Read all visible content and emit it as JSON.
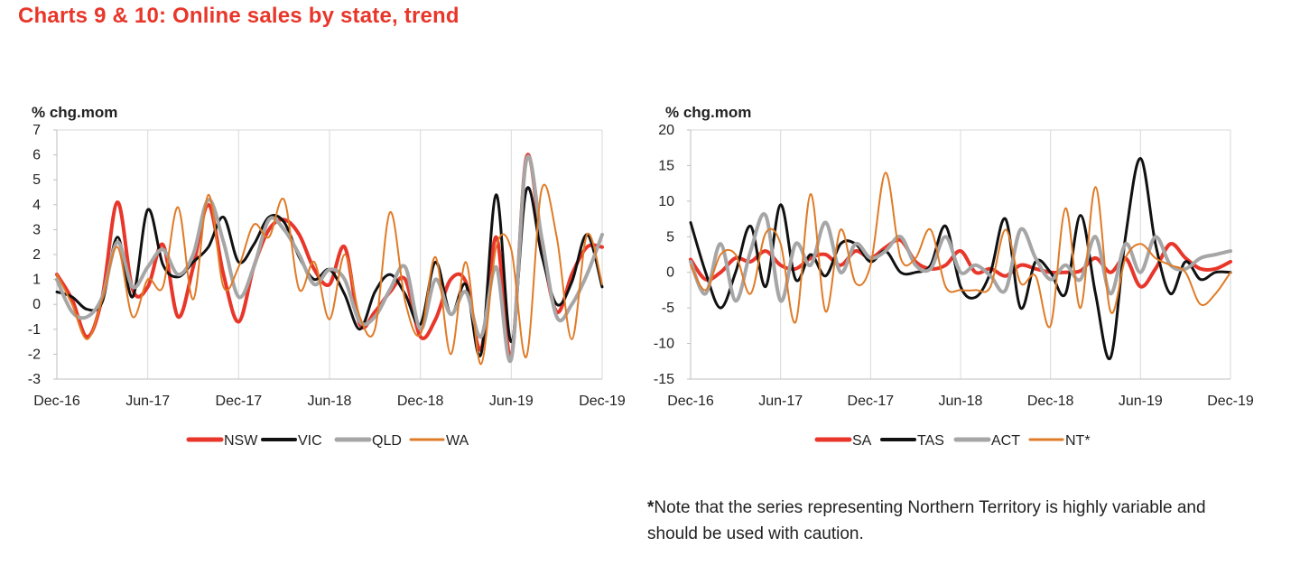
{
  "title": "Charts 9 & 10: Online sales by state, trend",
  "note": {
    "star": "*",
    "text": "Note that the series representing Northern Territory is highly variable and should be used with caution."
  },
  "colors": {
    "title": "#e8362a",
    "grid": "#d9d9d9",
    "axis": "#bfbfbf",
    "text": "#222222"
  },
  "chart_data": [
    {
      "type": "line",
      "ylabel": "% chg.mom",
      "ylim": [
        -3,
        7
      ],
      "yticks": [
        -3,
        -2,
        -1,
        0,
        1,
        2,
        3,
        4,
        5,
        6,
        7
      ],
      "xlim": [
        "2016-12",
        "2019-12"
      ],
      "xticks": [
        "Dec-16",
        "Jun-17",
        "Dec-17",
        "Jun-18",
        "Dec-18",
        "Jun-19",
        "Dec-19"
      ],
      "grid": true,
      "legend": "bottom",
      "x": [
        "2016-12",
        "2017-01",
        "2017-02",
        "2017-03",
        "2017-04",
        "2017-05",
        "2017-06",
        "2017-07",
        "2017-08",
        "2017-09",
        "2017-10",
        "2017-11",
        "2017-12",
        "2018-01",
        "2018-02",
        "2018-03",
        "2018-04",
        "2018-05",
        "2018-06",
        "2018-07",
        "2018-08",
        "2018-09",
        "2018-10",
        "2018-11",
        "2018-12",
        "2019-01",
        "2019-02",
        "2019-03",
        "2019-04",
        "2019-05",
        "2019-06",
        "2019-07",
        "2019-08",
        "2019-09",
        "2019-10",
        "2019-11",
        "2019-12"
      ],
      "series": [
        {
          "name": "NSW",
          "color": "#e8362a",
          "width": 4,
          "values": [
            1.2,
            0.2,
            -1.3,
            0.3,
            4.1,
            0.6,
            0.7,
            2.4,
            -0.5,
            1.5,
            4.0,
            1.2,
            -0.7,
            1.5,
            3.0,
            3.4,
            2.8,
            1.4,
            0.8,
            2.3,
            -0.8,
            -0.3,
            0.5,
            1.0,
            -1.3,
            -0.6,
            1.0,
            0.9,
            -1.8,
            2.7,
            -2.1,
            5.9,
            2.4,
            -0.3,
            1.2,
            2.3,
            2.3
          ]
        },
        {
          "name": "VIC",
          "color": "#111111",
          "width": 3,
          "values": [
            0.5,
            0.3,
            -0.2,
            0.1,
            2.7,
            0.3,
            3.8,
            1.6,
            1.1,
            1.7,
            2.3,
            3.5,
            1.7,
            2.4,
            3.5,
            3.3,
            1.9,
            1.0,
            1.4,
            0.4,
            -1.0,
            0.5,
            1.2,
            0.4,
            -0.8,
            1.7,
            -0.4,
            0.8,
            -2.0,
            4.4,
            -1.5,
            4.6,
            2.0,
            0.0,
            0.9,
            2.8,
            0.7
          ]
        },
        {
          "name": "QLD",
          "color": "#a6a6a6",
          "width": 4,
          "values": [
            1.0,
            -0.3,
            -0.5,
            0.3,
            2.5,
            0.7,
            1.5,
            2.2,
            1.2,
            2.0,
            4.2,
            2.5,
            0.3,
            1.5,
            3.4,
            3.0,
            2.0,
            0.8,
            1.4,
            1.0,
            -0.7,
            -0.5,
            0.6,
            1.5,
            -1.0,
            1.0,
            -0.4,
            0.5,
            -1.3,
            1.5,
            -2.2,
            5.8,
            2.7,
            -0.5,
            0.0,
            1.2,
            2.8
          ]
        },
        {
          "name": "WA",
          "color": "#e07b27",
          "width": 2,
          "values": [
            1.2,
            0.0,
            -1.4,
            0.2,
            2.3,
            -0.5,
            1.0,
            0.7,
            3.9,
            0.2,
            4.4,
            0.7,
            1.5,
            3.2,
            2.7,
            4.2,
            0.6,
            1.7,
            -0.6,
            2.0,
            -0.5,
            -1.0,
            3.7,
            0.1,
            -1.2,
            1.9,
            -2.0,
            1.7,
            -2.4,
            2.3,
            2.2,
            -2.1,
            4.6,
            2.7,
            -1.4,
            2.8,
            0.8
          ]
        }
      ]
    },
    {
      "type": "line",
      "ylabel": "% chg.mom",
      "ylim": [
        -15,
        20
      ],
      "yticks": [
        -15,
        -10,
        -5,
        0,
        5,
        10,
        15,
        20
      ],
      "xlim": [
        "2016-12",
        "2019-12"
      ],
      "xticks": [
        "Dec-16",
        "Jun-17",
        "Dec-17",
        "Jun-18",
        "Dec-18",
        "Jun-19",
        "Dec-19"
      ],
      "grid": true,
      "legend": "bottom",
      "x": [
        "2016-12",
        "2017-01",
        "2017-02",
        "2017-03",
        "2017-04",
        "2017-05",
        "2017-06",
        "2017-07",
        "2017-08",
        "2017-09",
        "2017-10",
        "2017-11",
        "2017-12",
        "2018-01",
        "2018-02",
        "2018-03",
        "2018-04",
        "2018-05",
        "2018-06",
        "2018-07",
        "2018-08",
        "2018-09",
        "2018-10",
        "2018-11",
        "2018-12",
        "2019-01",
        "2019-02",
        "2019-03",
        "2019-04",
        "2019-05",
        "2019-06",
        "2019-07",
        "2019-08",
        "2019-09",
        "2019-10",
        "2019-11",
        "2019-12"
      ],
      "series": [
        {
          "name": "SA",
          "color": "#e8362a",
          "width": 4,
          "values": [
            1.8,
            -1.0,
            0.0,
            2.0,
            1.5,
            3.0,
            1.0,
            0.5,
            2.0,
            2.5,
            1.0,
            3.0,
            2.0,
            3.5,
            4.5,
            1.5,
            0.5,
            1.0,
            3.0,
            0.0,
            0.5,
            -0.5,
            1.0,
            0.5,
            0.0,
            0.0,
            0.2,
            2.0,
            0.0,
            2.0,
            -2.0,
            0.5,
            4.0,
            2.0,
            0.5,
            0.5,
            1.5
          ]
        },
        {
          "name": "TAS",
          "color": "#111111",
          "width": 3,
          "values": [
            7.0,
            0.0,
            -5.0,
            0.0,
            6.5,
            -2.0,
            9.5,
            -1.0,
            2.5,
            -0.5,
            4.0,
            4.0,
            1.5,
            3.0,
            0.0,
            0.0,
            1.0,
            6.5,
            -2.0,
            -3.5,
            0.0,
            7.5,
            -5.0,
            1.5,
            0.0,
            -3.0,
            8.0,
            -3.0,
            -12.0,
            5.0,
            16.0,
            4.0,
            -3.0,
            1.5,
            -1.0,
            0.0,
            0.0
          ]
        },
        {
          "name": "ACT",
          "color": "#a6a6a6",
          "width": 4,
          "values": [
            1.5,
            -3.0,
            4.0,
            -4.0,
            3.0,
            8.0,
            -4.0,
            4.0,
            1.0,
            7.0,
            0.0,
            4.0,
            2.0,
            3.0,
            5.0,
            1.0,
            0.5,
            5.0,
            0.0,
            1.0,
            -0.5,
            -2.5,
            6.0,
            2.0,
            -1.0,
            1.0,
            -1.0,
            5.0,
            -3.0,
            4.0,
            0.0,
            5.0,
            1.0,
            0.5,
            2.0,
            2.5,
            3.0
          ]
        },
        {
          "name": "NT*",
          "color": "#e07b27",
          "width": 2,
          "values": [
            1.0,
            -2.5,
            2.5,
            2.5,
            -3.0,
            5.5,
            4.0,
            -7.0,
            11.0,
            -5.5,
            6.0,
            -1.5,
            1.0,
            14.0,
            2.0,
            2.0,
            6.0,
            -2.0,
            -2.5,
            -2.5,
            -2.0,
            6.0,
            -1.5,
            -0.5,
            -7.5,
            9.0,
            -5.0,
            12.0,
            -5.5,
            2.0,
            4.0,
            2.0,
            1.0,
            0.0,
            -4.5,
            -3.0,
            0.0
          ]
        }
      ]
    }
  ]
}
